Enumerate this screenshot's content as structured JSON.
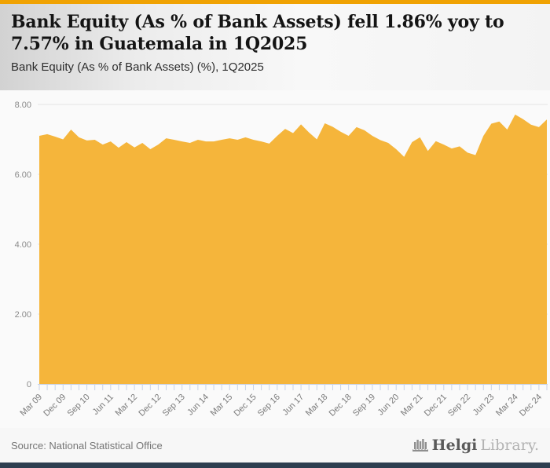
{
  "colors": {
    "accent_amber": "#F0A202",
    "area_fill": "#F5B53B",
    "grid_line": "#e4e4e4",
    "axis_line": "#c9d3e6",
    "tick_mark": "#c9d3e6",
    "axis_label": "#8a8a8a",
    "navy_bar": "#2D3E50"
  },
  "header": {
    "title": "Bank Equity (As % of Bank Assets) fell 1.86% yoy to 7.57% in Guatemala in 1Q2025",
    "subtitle": "Bank Equity (As % of Bank Assets) (%), 1Q2025"
  },
  "footer": {
    "source": "Source: National Statistical Office",
    "logo_text_primary": "Helgi",
    "logo_text_secondary": "Library."
  },
  "chart_data": {
    "type": "area",
    "title": "Bank Equity (As % of Bank Assets) fell 1.86% yoy to 7.57% in Guatemala in 1Q2025",
    "subtitle": "Bank Equity (As % of Bank Assets) (%), 1Q2025",
    "series_name": "Bank Equity (As % of Bank Assets) (%)",
    "frequency": "quarterly",
    "x_first": "Mar 09",
    "x_last": "Mar 25",
    "x_tick_labels": [
      "Mar 09",
      "Dec 09",
      "Sep 10",
      "Jun 11",
      "Mar 12",
      "Dec 12",
      "Sep 13",
      "Jun 14",
      "Mar 15",
      "Dec 15",
      "Sep 16",
      "Jun 17",
      "Mar 18",
      "Dec 18",
      "Sep 19",
      "Jun 20",
      "Mar 21",
      "Dec 21",
      "Sep 22",
      "Jun 23",
      "Mar 24",
      "Dec 24"
    ],
    "x_label_every": 3,
    "values": [
      7.1,
      7.15,
      7.08,
      7.0,
      7.28,
      7.06,
      6.97,
      6.99,
      6.85,
      6.94,
      6.76,
      6.92,
      6.77,
      6.9,
      6.72,
      6.85,
      7.03,
      6.99,
      6.94,
      6.9,
      6.99,
      6.94,
      6.94,
      6.99,
      7.03,
      6.99,
      7.06,
      6.99,
      6.94,
      6.88,
      7.1,
      7.3,
      7.18,
      7.43,
      7.2,
      7.0,
      7.46,
      7.36,
      7.22,
      7.1,
      7.35,
      7.26,
      7.1,
      6.98,
      6.9,
      6.72,
      6.5,
      6.92,
      7.06,
      6.67,
      6.95,
      6.85,
      6.74,
      6.8,
      6.62,
      6.55,
      7.1,
      7.45,
      7.51,
      7.28,
      7.71,
      7.58,
      7.42,
      7.35,
      7.57
    ],
    "last_value": 7.57,
    "yoy_change_pct": -1.86,
    "yticks": [
      0,
      2,
      4,
      6,
      8
    ],
    "ytick_labels": [
      "0",
      "2.00",
      "4.00",
      "6.00",
      "8.00"
    ],
    "ylim": [
      0,
      8.4
    ],
    "grid": true,
    "legend": false
  }
}
